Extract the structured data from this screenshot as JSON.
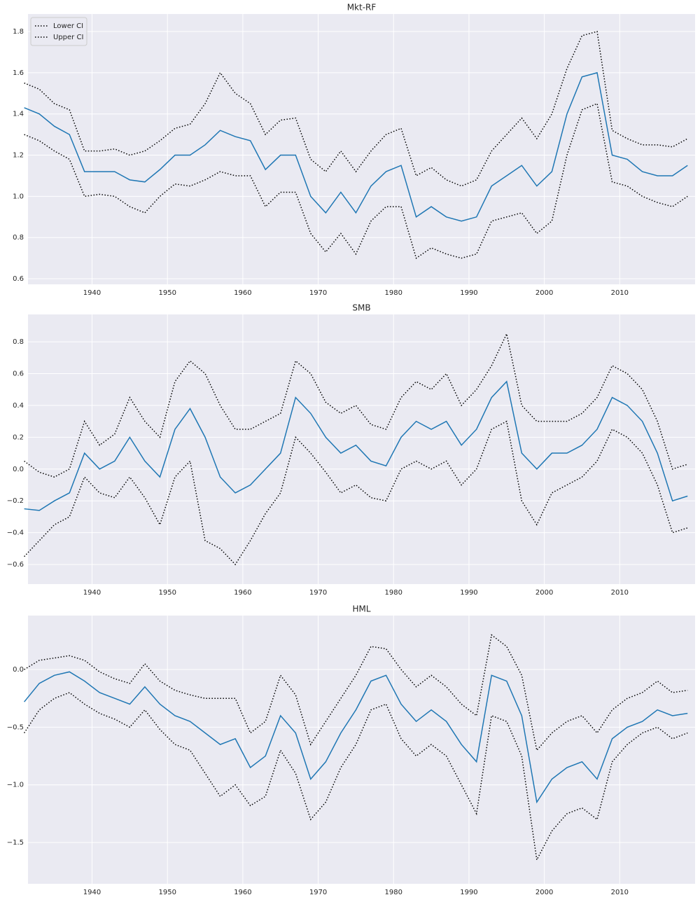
{
  "chart_data": [
    {
      "type": "line",
      "title": "Mkt-RF",
      "legend": "upper left",
      "grid": true,
      "x": [
        1931,
        1933,
        1935,
        1937,
        1939,
        1941,
        1943,
        1945,
        1947,
        1949,
        1951,
        1953,
        1955,
        1957,
        1959,
        1961,
        1963,
        1965,
        1967,
        1969,
        1971,
        1973,
        1975,
        1977,
        1979,
        1981,
        1983,
        1985,
        1987,
        1989,
        1991,
        1993,
        1995,
        1997,
        1999,
        2001,
        2003,
        2005,
        2007,
        2009,
        2011,
        2013,
        2015,
        2017,
        2019
      ],
      "xlim": [
        1931.5,
        2020
      ],
      "xticks": [
        1940,
        1950,
        1960,
        1970,
        1980,
        1990,
        2000,
        2010
      ],
      "ylim": [
        0.573,
        1.885
      ],
      "yticks": [
        0.6,
        0.8,
        {
          "value": 1,
          "label": "1.0"
        },
        1.2,
        1.4,
        1.6,
        1.8
      ],
      "series": [
        {
          "color": "#1f77b4",
          "linestyle": "solid",
          "values": [
            1.43,
            1.4,
            1.34,
            1.3,
            1.12,
            1.12,
            1.12,
            1.08,
            1.07,
            1.13,
            1.2,
            1.2,
            1.25,
            1.32,
            1.29,
            1.27,
            1.13,
            1.2,
            1.2,
            1.0,
            0.92,
            1.02,
            0.92,
            1.05,
            1.12,
            1.15,
            0.9,
            0.95,
            0.9,
            0.88,
            0.9,
            1.05,
            1.1,
            1.15,
            1.05,
            1.12,
            1.4,
            1.58,
            1.6,
            1.2,
            1.18,
            1.12,
            1.1,
            1.1,
            1.15
          ]
        },
        {
          "name": "Lower CI",
          "color": "#000000",
          "linestyle": "dotted",
          "values": [
            1.3,
            1.27,
            1.22,
            1.18,
            1.0,
            1.01,
            1.0,
            0.95,
            0.92,
            1.0,
            1.06,
            1.05,
            1.08,
            1.12,
            1.1,
            1.1,
            0.95,
            1.02,
            1.02,
            0.82,
            0.73,
            0.82,
            0.72,
            0.88,
            0.95,
            0.95,
            0.7,
            0.75,
            0.72,
            0.7,
            0.72,
            0.88,
            0.9,
            0.92,
            0.82,
            0.88,
            1.2,
            1.42,
            1.45,
            1.07,
            1.05,
            1.0,
            0.97,
            0.95,
            1.0
          ]
        },
        {
          "name": "Upper CI",
          "color": "#000000",
          "linestyle": "dotted",
          "values": [
            1.55,
            1.52,
            1.45,
            1.42,
            1.22,
            1.22,
            1.23,
            1.2,
            1.22,
            1.27,
            1.33,
            1.35,
            1.45,
            1.6,
            1.5,
            1.45,
            1.3,
            1.37,
            1.38,
            1.18,
            1.12,
            1.22,
            1.12,
            1.22,
            1.3,
            1.33,
            1.1,
            1.14,
            1.08,
            1.05,
            1.08,
            1.22,
            1.3,
            1.38,
            1.28,
            1.4,
            1.62,
            1.78,
            1.8,
            1.32,
            1.28,
            1.25,
            1.25,
            1.24,
            1.28
          ]
        }
      ]
    },
    {
      "type": "line",
      "title": "SMB",
      "grid": true,
      "x": [
        1931,
        1933,
        1935,
        1937,
        1939,
        1941,
        1943,
        1945,
        1947,
        1949,
        1951,
        1953,
        1955,
        1957,
        1959,
        1961,
        1963,
        1965,
        1967,
        1969,
        1971,
        1973,
        1975,
        1977,
        1979,
        1981,
        1983,
        1985,
        1987,
        1989,
        1991,
        1993,
        1995,
        1997,
        1999,
        2001,
        2003,
        2005,
        2007,
        2009,
        2011,
        2013,
        2015,
        2017,
        2019
      ],
      "xlim": [
        1931.5,
        2020
      ],
      "xticks": [
        1940,
        1950,
        1960,
        1970,
        1980,
        1990,
        2000,
        2010
      ],
      "ylim": [
        -0.723,
        0.972
      ],
      "yticks": [
        {
          "value": -0.6,
          "label": "−0.6"
        },
        {
          "value": -0.4,
          "label": "−0.4"
        },
        {
          "value": -0.2,
          "label": "−0.2"
        },
        {
          "value": 0,
          "label": "0.0"
        },
        0.2,
        0.4,
        0.6,
        0.8
      ],
      "series": [
        {
          "color": "#1f77b4",
          "linestyle": "solid",
          "values": [
            -0.25,
            -0.26,
            -0.2,
            -0.15,
            0.1,
            0.0,
            0.05,
            0.2,
            0.05,
            -0.05,
            0.25,
            0.38,
            0.2,
            -0.05,
            -0.15,
            -0.1,
            0.0,
            0.1,
            0.45,
            0.35,
            0.2,
            0.1,
            0.15,
            0.05,
            0.02,
            0.2,
            0.3,
            0.25,
            0.3,
            0.15,
            0.25,
            0.45,
            0.55,
            0.1,
            0.0,
            0.1,
            0.1,
            0.15,
            0.25,
            0.45,
            0.4,
            0.3,
            0.1,
            -0.2,
            -0.17
          ]
        },
        {
          "color": "#000000",
          "linestyle": "dotted",
          "values": [
            -0.55,
            -0.45,
            -0.35,
            -0.3,
            -0.05,
            -0.15,
            -0.18,
            -0.05,
            -0.18,
            -0.35,
            -0.05,
            0.05,
            -0.45,
            -0.5,
            -0.6,
            -0.45,
            -0.28,
            -0.15,
            0.2,
            0.1,
            -0.02,
            -0.15,
            -0.1,
            -0.18,
            -0.2,
            0.0,
            0.05,
            0.0,
            0.05,
            -0.1,
            0.0,
            0.25,
            0.3,
            -0.2,
            -0.35,
            -0.15,
            -0.1,
            -0.05,
            0.05,
            0.25,
            0.2,
            0.1,
            -0.1,
            -0.4,
            -0.37
          ]
        },
        {
          "color": "#000000",
          "linestyle": "dotted",
          "values": [
            0.05,
            -0.02,
            -0.05,
            0.0,
            0.3,
            0.15,
            0.22,
            0.45,
            0.3,
            0.2,
            0.55,
            0.68,
            0.6,
            0.4,
            0.25,
            0.25,
            0.3,
            0.35,
            0.68,
            0.6,
            0.42,
            0.35,
            0.4,
            0.28,
            0.25,
            0.45,
            0.55,
            0.5,
            0.6,
            0.4,
            0.5,
            0.65,
            0.85,
            0.4,
            0.3,
            0.3,
            0.3,
            0.35,
            0.45,
            0.65,
            0.6,
            0.5,
            0.3,
            0.0,
            0.03
          ]
        }
      ]
    },
    {
      "type": "line",
      "title": "HML",
      "grid": true,
      "x": [
        1931,
        1933,
        1935,
        1937,
        1939,
        1941,
        1943,
        1945,
        1947,
        1949,
        1951,
        1953,
        1955,
        1957,
        1959,
        1961,
        1963,
        1965,
        1967,
        1969,
        1971,
        1973,
        1975,
        1977,
        1979,
        1981,
        1983,
        1985,
        1987,
        1989,
        1991,
        1993,
        1995,
        1997,
        1999,
        2001,
        2003,
        2005,
        2007,
        2009,
        2011,
        2013,
        2015,
        2017,
        2019
      ],
      "xlim": [
        1931.5,
        2020
      ],
      "xticks": [
        1940,
        1950,
        1960,
        1970,
        1980,
        1990,
        2000,
        2010
      ],
      "ylim": [
        -1.858,
        0.468
      ],
      "yticks": [
        {
          "value": -1.5,
          "label": "−1.5"
        },
        {
          "value": -1,
          "label": "−1.0"
        },
        {
          "value": -0.5,
          "label": "−0.5"
        },
        {
          "value": 0,
          "label": "0.0"
        }
      ],
      "series": [
        {
          "color": "#1f77b4",
          "linestyle": "solid",
          "values": [
            -0.28,
            -0.12,
            -0.05,
            -0.02,
            -0.1,
            -0.2,
            -0.25,
            -0.3,
            -0.15,
            -0.3,
            -0.4,
            -0.45,
            -0.55,
            -0.65,
            -0.6,
            -0.85,
            -0.75,
            -0.4,
            -0.55,
            -0.95,
            -0.8,
            -0.55,
            -0.35,
            -0.1,
            -0.05,
            -0.3,
            -0.45,
            -0.35,
            -0.45,
            -0.65,
            -0.8,
            -0.05,
            -0.1,
            -0.4,
            -1.15,
            -0.95,
            -0.85,
            -0.8,
            -0.95,
            -0.6,
            -0.5,
            -0.45,
            -0.35,
            -0.4,
            -0.38
          ]
        },
        {
          "color": "#000000",
          "linestyle": "dotted",
          "values": [
            -0.55,
            -0.35,
            -0.25,
            -0.2,
            -0.3,
            -0.38,
            -0.43,
            -0.5,
            -0.35,
            -0.52,
            -0.65,
            -0.7,
            -0.9,
            -1.1,
            -1.0,
            -1.18,
            -1.1,
            -0.7,
            -0.9,
            -1.3,
            -1.15,
            -0.85,
            -0.65,
            -0.35,
            -0.3,
            -0.6,
            -0.75,
            -0.65,
            -0.75,
            -1.0,
            -1.25,
            -0.4,
            -0.45,
            -0.75,
            -1.65,
            -1.4,
            -1.25,
            -1.2,
            -1.3,
            -0.8,
            -0.65,
            -0.55,
            -0.5,
            -0.6,
            -0.55
          ]
        },
        {
          "color": "#000000",
          "linestyle": "dotted",
          "values": [
            0.0,
            0.08,
            0.1,
            0.12,
            0.08,
            -0.02,
            -0.08,
            -0.12,
            0.05,
            -0.1,
            -0.18,
            -0.22,
            -0.25,
            -0.25,
            -0.25,
            -0.55,
            -0.45,
            -0.05,
            -0.22,
            -0.65,
            -0.45,
            -0.25,
            -0.05,
            0.2,
            0.18,
            0.0,
            -0.15,
            -0.05,
            -0.15,
            -0.3,
            -0.4,
            0.3,
            0.2,
            -0.05,
            -0.7,
            -0.55,
            -0.45,
            -0.4,
            -0.55,
            -0.35,
            -0.25,
            -0.2,
            -0.1,
            -0.2,
            -0.18
          ]
        }
      ]
    }
  ]
}
